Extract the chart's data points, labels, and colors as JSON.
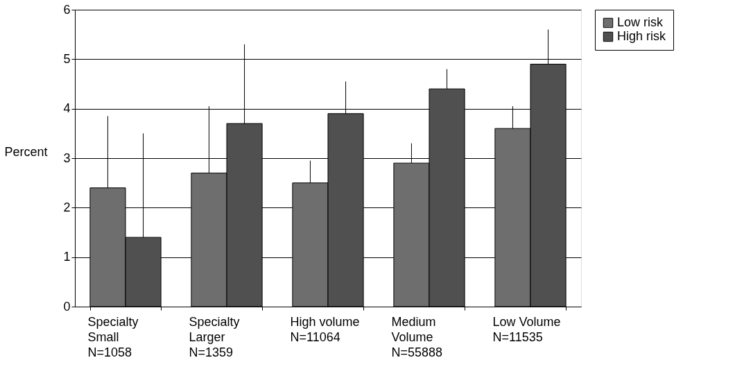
{
  "chart_data": {
    "type": "bar",
    "categories": [
      "Specialty\nSmall\nN=1058",
      "Specialty\nLarger\nN=1359",
      "High volume\nN=11064",
      "Medium\nVolume\nN=55888",
      "Low Volume\nN=11535"
    ],
    "series": [
      {
        "name": "Low risk",
        "color": "#6e6e6e",
        "values": [
          2.4,
          2.7,
          2.5,
          2.9,
          3.6
        ],
        "errors": [
          [
            2.4,
            3.85
          ],
          [
            2.7,
            4.05
          ],
          [
            2.5,
            2.95
          ],
          [
            2.9,
            3.3
          ],
          [
            3.6,
            4.05
          ]
        ]
      },
      {
        "name": "High risk",
        "color": "#505050",
        "values": [
          1.4,
          3.7,
          3.9,
          4.4,
          4.9
        ],
        "errors": [
          [
            1.4,
            3.5
          ],
          [
            3.7,
            5.3
          ],
          [
            3.9,
            4.55
          ],
          [
            4.4,
            4.8
          ],
          [
            4.9,
            5.6
          ]
        ]
      }
    ],
    "ylabel": "Percent",
    "ylim": [
      0,
      6
    ],
    "yticks": [
      0,
      1,
      2,
      3,
      4,
      5,
      6
    ],
    "grid": "y",
    "legend": "right"
  }
}
